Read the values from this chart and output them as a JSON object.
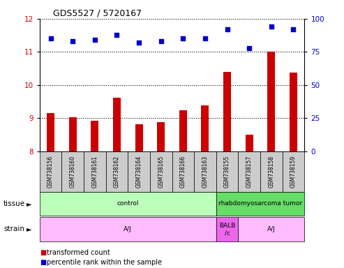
{
  "title": "GDS5527 / 5720167",
  "samples": [
    "GSM738156",
    "GSM738160",
    "GSM738161",
    "GSM738162",
    "GSM738164",
    "GSM738165",
    "GSM738166",
    "GSM738163",
    "GSM738155",
    "GSM738157",
    "GSM738158",
    "GSM738159"
  ],
  "bar_values": [
    9.15,
    9.02,
    8.92,
    9.62,
    8.82,
    8.88,
    9.25,
    9.38,
    10.4,
    8.5,
    11.0,
    10.38
  ],
  "dot_values": [
    85,
    83,
    84,
    88,
    82,
    83,
    85,
    85,
    92,
    78,
    94,
    92
  ],
  "ylim_left": [
    8,
    12
  ],
  "ylim_right": [
    0,
    100
  ],
  "yticks_left": [
    8,
    9,
    10,
    11,
    12
  ],
  "yticks_right": [
    0,
    25,
    50,
    75,
    100
  ],
  "bar_color": "#cc0000",
  "dot_color": "#0000cc",
  "tissue_groups": [
    {
      "label": "control",
      "start": 0,
      "end": 8,
      "color": "#bbffbb"
    },
    {
      "label": "rhabdomyosarcoma tumor",
      "start": 8,
      "end": 12,
      "color": "#66dd66"
    }
  ],
  "strain_groups": [
    {
      "label": "A/J",
      "start": 0,
      "end": 8,
      "color": "#ffbbff"
    },
    {
      "label": "BALB\n/c",
      "start": 8,
      "end": 9,
      "color": "#ee66ee"
    },
    {
      "label": "A/J",
      "start": 9,
      "end": 12,
      "color": "#ffbbff"
    }
  ],
  "tissue_label": "tissue",
  "strain_label": "strain",
  "legend_bar_label": "transformed count",
  "legend_dot_label": "percentile rank within the sample",
  "bar_color_legend": "#cc0000",
  "dot_color_legend": "#0000cc",
  "grid_color": "#000000",
  "tick_color_left": "#cc0000",
  "tick_color_right": "#0000cc",
  "sample_bg_color": "#cccccc",
  "bar_width": 0.35
}
